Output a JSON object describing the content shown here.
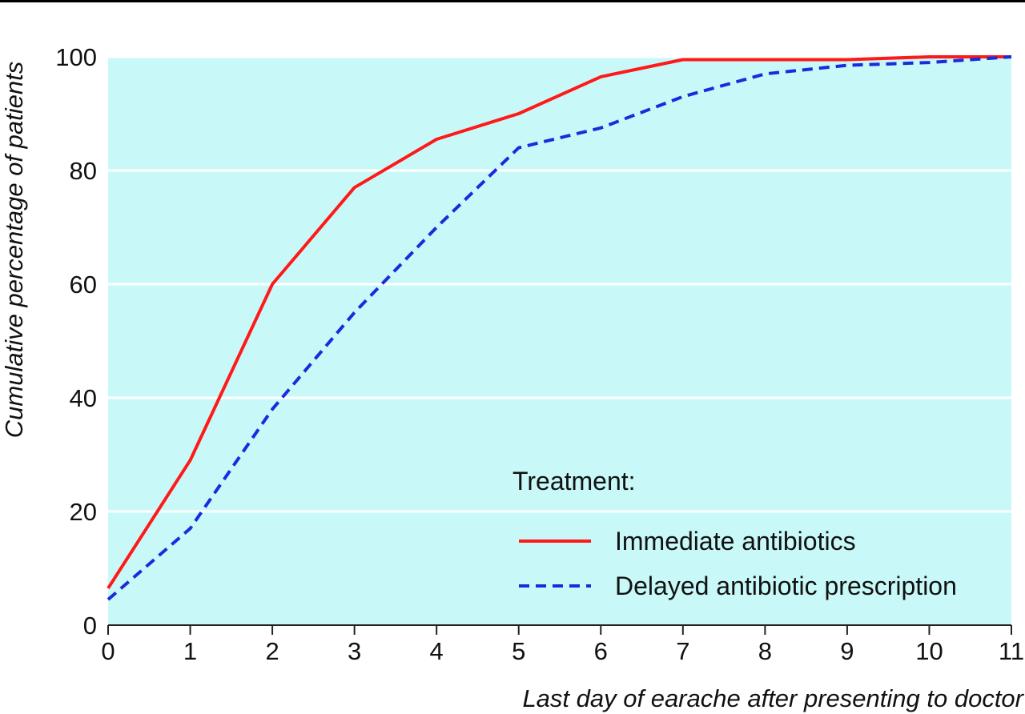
{
  "chart_data": {
    "type": "line",
    "xlabel": "Last day of earache after presenting to doctor",
    "ylabel": "Cumulative percentage of patients",
    "xlim": [
      0,
      11
    ],
    "ylim": [
      0,
      100
    ],
    "x_ticks": [
      "0",
      "1",
      "2",
      "3",
      "4",
      "5",
      "6",
      "7",
      "8",
      "9",
      "10",
      "11"
    ],
    "y_ticks": [
      "0",
      "20",
      "40",
      "60",
      "80",
      "100"
    ],
    "grid": "horizontal",
    "plot_background": "#c8f8f8",
    "legend": {
      "title": "Treatment:",
      "placement": "bottom-right"
    },
    "x": [
      0,
      1,
      2,
      3,
      4,
      5,
      6,
      7,
      8,
      9,
      10,
      11
    ],
    "series": [
      {
        "name": "Immediate antibiotics",
        "color": "#ff1a1a",
        "dash": "solid",
        "values": [
          6.5,
          29,
          60,
          77,
          85.5,
          90,
          96.5,
          99.5,
          99.5,
          99.5,
          100,
          100
        ]
      },
      {
        "name": "Delayed antibiotic prescription",
        "color": "#1a2bdd",
        "dash": "dashed",
        "values": [
          4.5,
          17,
          38,
          55,
          70,
          84,
          87.5,
          93,
          97,
          98.5,
          99,
          100
        ]
      }
    ]
  }
}
